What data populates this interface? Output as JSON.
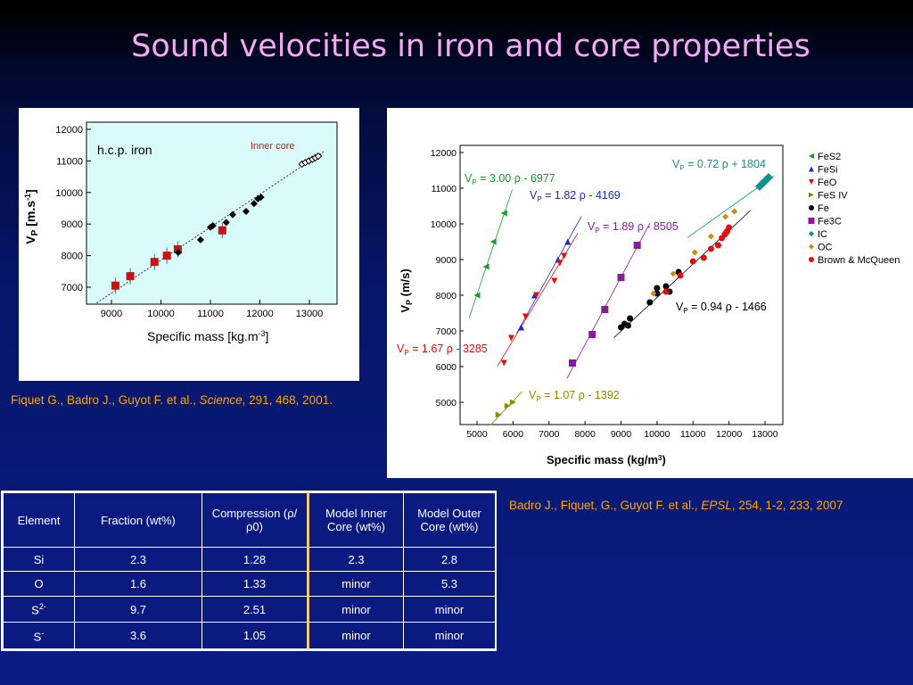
{
  "title": "Sound velocities in iron and core properties",
  "left_chart_label": "h.c.p. iron",
  "left_chart_inner_core": "Inner core",
  "citation_left": {
    "authors": "Fiquet G., Badro J., Guyot F. et al., ",
    "journal": "Science",
    "rest": ", 291, 468, 2001."
  },
  "citation_right": {
    "authors": "Badro J., Fiquet, G., Guyot F.  et al., ",
    "journal": "EPSL",
    "rest": ", 254, 1-2, 233, 2007"
  },
  "table": {
    "headers": [
      "Element",
      "Fraction (wt%)",
      "Compression (ρ/ρ0)",
      "Model Inner Core (wt%)",
      "Model Outer Core (wt%)"
    ],
    "rows": [
      {
        "element": "Si",
        "sup": "",
        "fraction": "2.3",
        "compression": "1.28",
        "inner": "2.3",
        "outer": "2.8"
      },
      {
        "element": "O",
        "sup": "",
        "fraction": "1.6",
        "compression": "1.33",
        "inner": "minor",
        "outer": "5.3"
      },
      {
        "element": "S",
        "sup": "2-",
        "fraction": "9.7",
        "compression": "2.51",
        "inner": "minor",
        "outer": "minor"
      },
      {
        "element": "S",
        "sup": "-",
        "fraction": "3.6",
        "compression": "1.05",
        "inner": "minor",
        "outer": "minor"
      }
    ]
  },
  "chart_data": [
    {
      "type": "scatter",
      "xlabel": "Specific mass [kg.m-3]",
      "ylabel": "VP [m.s-1]",
      "xlim": [
        8500,
        13500
      ],
      "ylim": [
        6500,
        12000
      ],
      "xticks": [
        9000,
        10000,
        11000,
        12000,
        13000
      ],
      "yticks": [
        7000,
        8000,
        9000,
        10000,
        11000,
        12000
      ],
      "bg": "#d9fbfa",
      "series": [
        {
          "marker": "square",
          "color": "#cc1111",
          "x": [
            9080,
            9380,
            9870,
            10120,
            10340,
            11240
          ],
          "y": [
            7050,
            7350,
            7800,
            8000,
            8200,
            8800
          ]
        },
        {
          "marker": "diamond",
          "color": "#000000",
          "x": [
            10350,
            10800,
            11000,
            11050,
            11320,
            11450,
            11720,
            11880,
            11960,
            12020
          ],
          "y": [
            8100,
            8500,
            8900,
            8950,
            9050,
            9300,
            9400,
            9650,
            9800,
            9850
          ]
        },
        {
          "marker": "open-diamond",
          "color": "#000000",
          "x": [
            12850,
            12920,
            12990,
            13060,
            13120,
            13180
          ],
          "y": [
            10900,
            10950,
            11000,
            11050,
            11100,
            11150
          ]
        }
      ],
      "fit_line": {
        "x": [
          8700,
          13300
        ],
        "y": [
          6500,
          11300
        ]
      }
    },
    {
      "type": "scatter",
      "xlabel": "Specific mass (kg/m3)",
      "ylabel": "VP (m/s)",
      "xlim": [
        4800,
        13300
      ],
      "ylim": [
        4500,
        12000
      ],
      "xticks": [
        5000,
        6000,
        7000,
        8000,
        9000,
        10000,
        11000,
        12000,
        13000
      ],
      "yticks": [
        5000,
        6000,
        7000,
        8000,
        9000,
        10000,
        11000,
        12000
      ],
      "legend_position": "top-right",
      "series": [
        {
          "name": "FeS2",
          "marker": "triangle-left",
          "color": "#1a9a2a",
          "x": [
            5000,
            5250,
            5450,
            5750
          ],
          "y": [
            8000,
            8800,
            9500,
            10300
          ]
        },
        {
          "name": "FeSi",
          "marker": "triangle-up",
          "color": "#1a2ad0",
          "x": [
            6230,
            6600,
            7250,
            7520
          ],
          "y": [
            7100,
            8000,
            9000,
            9500
          ]
        },
        {
          "name": "FeO",
          "marker": "triangle-down",
          "color": "#e01010",
          "x": [
            5750,
            5950,
            6350,
            6650,
            7150,
            7300,
            7420
          ],
          "y": [
            6100,
            6800,
            7400,
            8000,
            8400,
            8900,
            9100
          ]
        },
        {
          "name": "FeS IV",
          "marker": "triangle-right",
          "color": "#8a8a00",
          "x": [
            5600,
            5850,
            6000
          ],
          "y": [
            4650,
            4900,
            5000
          ]
        },
        {
          "name": "Fe",
          "marker": "circle",
          "color": "#000000",
          "x": [
            9000,
            9100,
            9200,
            9250,
            9800,
            10000,
            10000,
            10250,
            10350,
            10600
          ],
          "y": [
            7100,
            7200,
            7150,
            7350,
            7800,
            8050,
            8200,
            8250,
            8100,
            8650
          ]
        },
        {
          "name": "Fe3C",
          "marker": "square",
          "color": "#8a1a9a",
          "x": [
            7650,
            8200,
            8550,
            9000,
            9450
          ],
          "y": [
            6100,
            6900,
            7600,
            8500,
            9400
          ]
        },
        {
          "name": "IC",
          "marker": "diamond",
          "color": "#10908f",
          "x": [
            12850,
            12900,
            12950,
            13000,
            13050,
            13100
          ],
          "y": [
            11050,
            11100,
            11150,
            11200,
            11250,
            11300
          ]
        },
        {
          "name": "OC",
          "marker": "diamond",
          "color": "#d08a10",
          "x": [
            9900,
            10450,
            11050,
            11500,
            11900,
            12150
          ],
          "y": [
            8050,
            8600,
            9200,
            9650,
            10200,
            10350
          ]
        },
        {
          "name": "Brown & McQueen",
          "marker": "circle",
          "color": "#e01010",
          "x": [
            10250,
            10650,
            11000,
            11300,
            11500,
            11700,
            11800,
            11880,
            11920,
            11950,
            12000
          ],
          "y": [
            8100,
            8550,
            8950,
            9050,
            9300,
            9400,
            9600,
            9700,
            9750,
            9800,
            9900
          ]
        }
      ],
      "fits": [
        {
          "label": "VP = 3.00 ρ - 6977",
          "color": "#1a9a2a",
          "x": [
            4780,
            5980
          ]
        },
        {
          "label": "VP = 1.82 ρ - 4169",
          "color": "#1a2ad0",
          "x": [
            6100,
            7900
          ]
        },
        {
          "label": "VP = 1.67 ρ - 3285",
          "color": "#e01010",
          "x": [
            5570,
            7800
          ]
        },
        {
          "label": "VP = 1.07 ρ - 1392",
          "color": "#8a8a00",
          "x": [
            5380,
            6250
          ]
        },
        {
          "label": "VP = 0.94 ρ - 1466",
          "color": "#000000",
          "x": [
            8800,
            12600
          ]
        },
        {
          "label": "VP = 1.89 ρ - 8505",
          "color": "#8a1a9a",
          "x": [
            7500,
            9800
          ]
        },
        {
          "label": "VP = 0.72 ρ + 1804",
          "color": "#10908f",
          "x": [
            10850,
            13250
          ]
        }
      ]
    }
  ]
}
